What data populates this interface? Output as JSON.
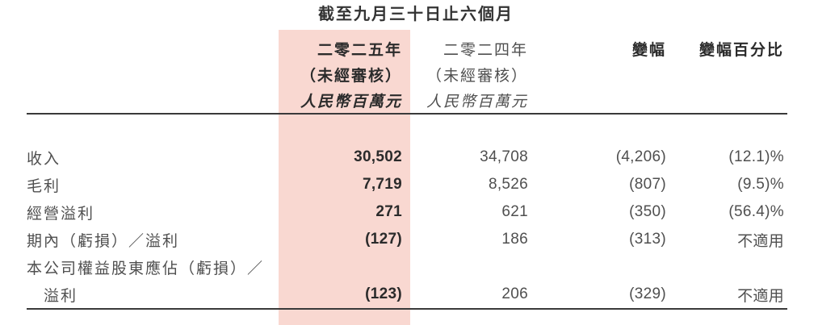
{
  "title": "截至九月三十日止六個月",
  "header": {
    "y2025": {
      "year": "二零二五年",
      "audit": "（未經審核）",
      "unit": "人民幣百萬元"
    },
    "y2024": {
      "year": "二零二四年",
      "audit": "（未經審核）",
      "unit": "人民幣百萬元"
    },
    "change": "變幅",
    "change_pct": "變幅百分比"
  },
  "rows": [
    {
      "label": "收入",
      "v2025": "30,502",
      "v2024": "34,708",
      "change": "(4,206)",
      "pct": "(12.1)%"
    },
    {
      "label": "毛利",
      "v2025": "7,719",
      "v2024": "8,526",
      "change": "(807)",
      "pct": "(9.5)%"
    },
    {
      "label": "經營溢利",
      "v2025": "271",
      "v2024": "621",
      "change": "(350)",
      "pct": "(56.4)%"
    },
    {
      "label": "期內（虧損）／溢利",
      "v2025": "(127)",
      "v2024": "186",
      "change": "(313)",
      "pct": "不適用"
    },
    {
      "label": "本公司權益股東應佔（虧損）／",
      "v2025": "",
      "v2024": "",
      "change": "",
      "pct": ""
    },
    {
      "label": "溢利",
      "v2025": "(123)",
      "v2024": "206",
      "change": "(329)",
      "pct": "不適用"
    }
  ],
  "colors": {
    "highlight": "#f9d8d1",
    "rule": "#3a3a3a",
    "text_bold": "#2b2b2b",
    "text_regular": "#4f4f4f"
  }
}
